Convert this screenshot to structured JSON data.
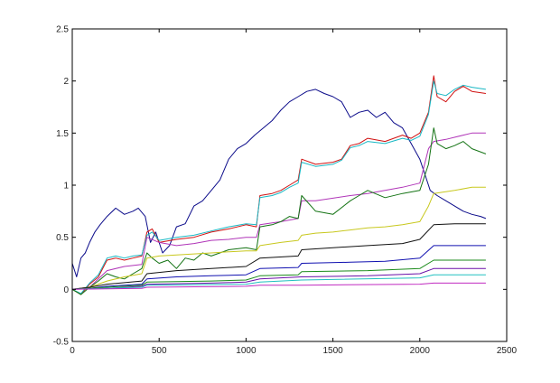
{
  "chart_data": {
    "type": "line",
    "title": "",
    "xlabel": "",
    "ylabel": "",
    "xlim": [
      0,
      2500
    ],
    "ylim": [
      -0.5,
      2.5
    ],
    "grid": false,
    "legend": "none",
    "xticks": [
      "0",
      "500",
      "1000",
      "1500",
      "2000",
      "2500"
    ],
    "yticks": [
      "-0.5",
      "0",
      "0.5",
      "1",
      "1.5",
      "2",
      "2.5"
    ],
    "series": [
      {
        "color": "#0b0b8a",
        "x": [
          0,
          25,
          50,
          75,
          100,
          130,
          160,
          200,
          250,
          300,
          350,
          380,
          420,
          450,
          480,
          520,
          560,
          600,
          650,
          700,
          750,
          800,
          850,
          900,
          950,
          1000,
          1050,
          1100,
          1150,
          1200,
          1250,
          1300,
          1350,
          1400,
          1450,
          1500,
          1550,
          1600,
          1650,
          1700,
          1750,
          1800,
          1850,
          1900,
          1950,
          2000,
          2030,
          2060,
          2100,
          2150,
          2200,
          2250,
          2300,
          2350,
          2380
        ],
        "y": [
          0.25,
          0.12,
          0.3,
          0.35,
          0.45,
          0.55,
          0.62,
          0.7,
          0.78,
          0.72,
          0.75,
          0.78,
          0.7,
          0.45,
          0.55,
          0.35,
          0.42,
          0.6,
          0.63,
          0.8,
          0.85,
          0.95,
          1.05,
          1.25,
          1.35,
          1.4,
          1.48,
          1.55,
          1.62,
          1.72,
          1.8,
          1.85,
          1.9,
          1.92,
          1.88,
          1.85,
          1.8,
          1.65,
          1.7,
          1.72,
          1.65,
          1.7,
          1.6,
          1.55,
          1.4,
          1.25,
          1.1,
          0.95,
          0.9,
          0.85,
          0.8,
          0.75,
          0.72,
          0.7,
          0.68
        ]
      },
      {
        "color": "#d01010",
        "x": [
          0,
          50,
          100,
          150,
          200,
          250,
          300,
          350,
          400,
          430,
          460,
          500,
          600,
          700,
          800,
          900,
          1000,
          1060,
          1080,
          1150,
          1200,
          1250,
          1300,
          1320,
          1400,
          1500,
          1550,
          1600,
          1650,
          1700,
          1800,
          1900,
          1950,
          2000,
          2050,
          2080,
          2100,
          2150,
          2200,
          2250,
          2300,
          2380
        ],
        "y": [
          0.0,
          -0.05,
          0.05,
          0.12,
          0.28,
          0.3,
          0.28,
          0.3,
          0.32,
          0.55,
          0.58,
          0.45,
          0.48,
          0.5,
          0.55,
          0.58,
          0.62,
          0.6,
          0.9,
          0.92,
          0.95,
          1.0,
          1.05,
          1.25,
          1.2,
          1.22,
          1.25,
          1.38,
          1.4,
          1.45,
          1.42,
          1.48,
          1.45,
          1.5,
          1.7,
          2.05,
          1.85,
          1.8,
          1.9,
          1.95,
          1.9,
          1.88
        ]
      },
      {
        "color": "#19b8c4",
        "x": [
          0,
          50,
          100,
          150,
          200,
          250,
          300,
          350,
          400,
          430,
          460,
          500,
          600,
          700,
          800,
          900,
          1000,
          1060,
          1080,
          1150,
          1200,
          1250,
          1300,
          1320,
          1400,
          1500,
          1550,
          1600,
          1650,
          1700,
          1800,
          1900,
          1950,
          2000,
          2050,
          2080,
          2100,
          2150,
          2200,
          2250,
          2300,
          2380
        ],
        "y": [
          0.0,
          -0.04,
          0.06,
          0.14,
          0.3,
          0.32,
          0.3,
          0.32,
          0.33,
          0.52,
          0.55,
          0.47,
          0.5,
          0.52,
          0.56,
          0.6,
          0.63,
          0.62,
          0.88,
          0.9,
          0.93,
          0.98,
          1.02,
          1.22,
          1.18,
          1.2,
          1.24,
          1.36,
          1.38,
          1.42,
          1.4,
          1.45,
          1.43,
          1.47,
          1.68,
          2.0,
          1.88,
          1.86,
          1.92,
          1.96,
          1.94,
          1.92
        ]
      },
      {
        "color": "#b035b8",
        "x": [
          0,
          100,
          150,
          200,
          300,
          400,
          430,
          500,
          600,
          700,
          800,
          900,
          1000,
          1060,
          1080,
          1200,
          1300,
          1320,
          1400,
          1600,
          1700,
          1800,
          1900,
          2000,
          2050,
          2080,
          2150,
          2250,
          2300,
          2380
        ],
        "y": [
          0.0,
          0.02,
          0.1,
          0.18,
          0.22,
          0.24,
          0.5,
          0.45,
          0.42,
          0.44,
          0.47,
          0.48,
          0.5,
          0.5,
          0.62,
          0.65,
          0.68,
          0.85,
          0.85,
          0.9,
          0.92,
          0.95,
          0.98,
          1.02,
          1.35,
          1.42,
          1.44,
          1.48,
          1.5,
          1.5
        ]
      },
      {
        "color": "#147314",
        "x": [
          0,
          50,
          100,
          150,
          200,
          250,
          300,
          350,
          400,
          430,
          460,
          500,
          550,
          600,
          650,
          700,
          750,
          800,
          900,
          1000,
          1060,
          1080,
          1150,
          1200,
          1250,
          1300,
          1320,
          1400,
          1500,
          1600,
          1650,
          1700,
          1800,
          1900,
          2000,
          2050,
          2080,
          2100,
          2150,
          2200,
          2250,
          2300,
          2380
        ],
        "y": [
          0.0,
          -0.05,
          0.02,
          0.08,
          0.15,
          0.12,
          0.1,
          0.15,
          0.2,
          0.35,
          0.3,
          0.25,
          0.28,
          0.2,
          0.3,
          0.28,
          0.35,
          0.32,
          0.38,
          0.4,
          0.38,
          0.6,
          0.62,
          0.65,
          0.7,
          0.68,
          0.9,
          0.75,
          0.72,
          0.85,
          0.9,
          0.95,
          0.88,
          0.92,
          0.95,
          1.2,
          1.55,
          1.4,
          1.35,
          1.38,
          1.42,
          1.35,
          1.3
        ]
      },
      {
        "color": "#c8c81e",
        "x": [
          0,
          100,
          200,
          300,
          400,
          430,
          500,
          600,
          700,
          800,
          900,
          1000,
          1060,
          1080,
          1200,
          1300,
          1320,
          1400,
          1500,
          1600,
          1700,
          1800,
          1900,
          2000,
          2050,
          2080,
          2200,
          2300,
          2380
        ],
        "y": [
          0.0,
          0.02,
          0.08,
          0.12,
          0.15,
          0.3,
          0.32,
          0.33,
          0.34,
          0.35,
          0.36,
          0.37,
          0.37,
          0.42,
          0.45,
          0.47,
          0.52,
          0.54,
          0.55,
          0.57,
          0.59,
          0.6,
          0.62,
          0.65,
          0.8,
          0.92,
          0.95,
          0.98,
          0.98
        ]
      },
      {
        "color": "#111111",
        "x": [
          0,
          100,
          200,
          400,
          430,
          600,
          800,
          1000,
          1080,
          1300,
          1320,
          1500,
          1700,
          1900,
          2000,
          2080,
          2200,
          2380
        ],
        "y": [
          0.0,
          0.02,
          0.05,
          0.08,
          0.15,
          0.18,
          0.2,
          0.22,
          0.3,
          0.32,
          0.38,
          0.4,
          0.42,
          0.44,
          0.48,
          0.62,
          0.63,
          0.63
        ]
      },
      {
        "color": "#1010b0",
        "x": [
          0,
          100,
          200,
          400,
          430,
          600,
          800,
          1000,
          1080,
          1300,
          1320,
          1600,
          1800,
          2000,
          2080,
          2380
        ],
        "y": [
          0.0,
          0.01,
          0.03,
          0.05,
          0.1,
          0.12,
          0.13,
          0.14,
          0.2,
          0.21,
          0.25,
          0.26,
          0.27,
          0.3,
          0.42,
          0.42
        ]
      },
      {
        "color": "#1a8a1a",
        "x": [
          0,
          200,
          400,
          430,
          800,
          1000,
          1080,
          1300,
          1320,
          1700,
          2000,
          2080,
          2380
        ],
        "y": [
          0.0,
          0.02,
          0.04,
          0.07,
          0.08,
          0.09,
          0.13,
          0.14,
          0.17,
          0.18,
          0.2,
          0.28,
          0.28
        ]
      },
      {
        "color": "#6a0fa8",
        "x": [
          0,
          200,
          400,
          430,
          800,
          1000,
          1080,
          1320,
          1700,
          2000,
          2080,
          2380
        ],
        "y": [
          0.0,
          0.01,
          0.03,
          0.05,
          0.06,
          0.07,
          0.1,
          0.12,
          0.13,
          0.15,
          0.2,
          0.2
        ]
      },
      {
        "color": "#20c0c0",
        "x": [
          0,
          400,
          430,
          1000,
          1080,
          1320,
          2000,
          2080,
          2380
        ],
        "y": [
          0.0,
          0.02,
          0.04,
          0.05,
          0.07,
          0.09,
          0.11,
          0.14,
          0.14
        ]
      },
      {
        "color": "#c02ac0",
        "x": [
          0,
          400,
          430,
          1000,
          1080,
          1320,
          2000,
          2080,
          2380
        ],
        "y": [
          0.0,
          0.01,
          0.02,
          0.03,
          0.04,
          0.04,
          0.05,
          0.06,
          0.06
        ]
      }
    ]
  }
}
